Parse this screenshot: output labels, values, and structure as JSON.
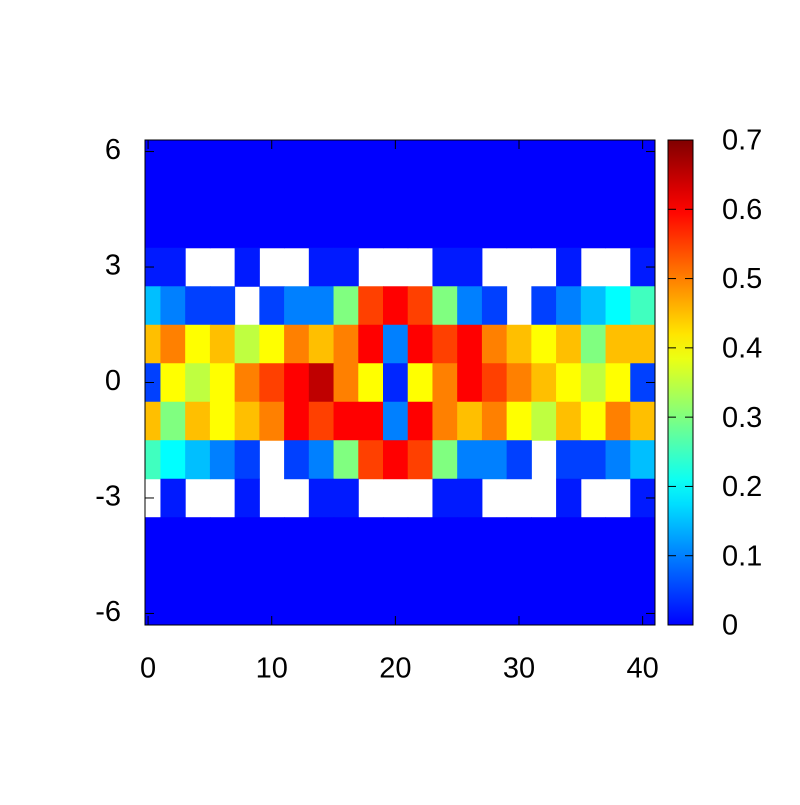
{
  "chart_data": {
    "type": "heatmap",
    "x": [
      0,
      2,
      4,
      6,
      8,
      10,
      12,
      14,
      16,
      18,
      20,
      22,
      24,
      26,
      28,
      30,
      32,
      34,
      36,
      38,
      40
    ],
    "y": [
      6,
      5,
      4,
      3,
      2,
      1,
      0,
      -1,
      -2,
      -3,
      -4,
      -5,
      -6
    ],
    "z": [
      [
        0,
        0,
        0,
        0,
        0,
        0,
        0,
        0,
        0,
        0,
        0,
        0,
        0,
        0,
        0,
        0,
        0,
        0,
        0,
        0,
        0
      ],
      [
        0,
        0,
        0,
        0,
        0,
        0,
        0,
        0,
        0,
        0,
        0,
        0,
        0,
        0,
        0,
        0,
        0,
        0,
        0,
        0,
        0
      ],
      [
        0,
        0,
        0,
        0,
        0,
        0,
        0,
        0,
        0,
        0,
        0,
        0,
        0,
        0,
        0,
        0,
        0,
        0,
        0,
        0,
        0
      ],
      [
        0.02,
        0.02,
        null,
        null,
        0.02,
        null,
        null,
        0.02,
        0.02,
        null,
        null,
        null,
        0.02,
        0.02,
        null,
        null,
        null,
        0.02,
        null,
        null,
        0.02
      ],
      [
        0.15,
        0.1,
        0.05,
        0.05,
        null,
        0.05,
        0.1,
        0.1,
        0.3,
        0.55,
        0.6,
        0.55,
        0.3,
        0.1,
        0.05,
        null,
        0.05,
        0.1,
        0.15,
        0.2,
        0.25
      ],
      [
        0.45,
        0.5,
        0.4,
        0.45,
        0.35,
        0.4,
        0.5,
        0.45,
        0.5,
        0.6,
        0.1,
        0.6,
        0.55,
        0.6,
        0.5,
        0.45,
        0.4,
        0.45,
        0.3,
        0.45,
        0.45
      ],
      [
        0.05,
        0.4,
        0.35,
        0.4,
        0.5,
        0.55,
        0.6,
        0.65,
        0.5,
        0.4,
        0.03,
        0.4,
        0.5,
        0.6,
        0.55,
        0.5,
        0.45,
        0.4,
        0.35,
        0.4,
        0.05
      ],
      [
        0.45,
        0.3,
        0.45,
        0.4,
        0.45,
        0.5,
        0.6,
        0.55,
        0.6,
        0.6,
        0.1,
        0.6,
        0.5,
        0.45,
        0.5,
        0.4,
        0.35,
        0.45,
        0.4,
        0.5,
        0.45
      ],
      [
        0.25,
        0.2,
        0.15,
        0.1,
        0.05,
        null,
        0.05,
        0.1,
        0.3,
        0.55,
        0.6,
        0.55,
        0.3,
        0.1,
        0.1,
        0.05,
        null,
        0.05,
        0.05,
        0.1,
        0.15
      ],
      [
        null,
        0.02,
        null,
        null,
        0.02,
        null,
        null,
        0.02,
        0.02,
        null,
        null,
        null,
        0.02,
        0.02,
        null,
        null,
        null,
        0.02,
        null,
        null,
        0.02
      ],
      [
        0,
        0,
        0,
        0,
        0,
        0,
        0,
        0,
        0,
        0,
        0,
        0,
        0,
        0,
        0,
        0,
        0,
        0,
        0,
        0,
        0
      ],
      [
        0,
        0,
        0,
        0,
        0,
        0,
        0,
        0,
        0,
        0,
        0,
        0,
        0,
        0,
        0,
        0,
        0,
        0,
        0,
        0,
        0
      ],
      [
        0,
        0,
        0,
        0,
        0,
        0,
        0,
        0,
        0,
        0,
        0,
        0,
        0,
        0,
        0,
        0,
        0,
        0,
        0,
        0,
        0
      ]
    ],
    "xlim": [
      -0.25,
      41
    ],
    "ylim": [
      -6.3,
      6.3
    ],
    "xticks": [
      0,
      10,
      20,
      30,
      40
    ],
    "yticks": [
      6,
      3,
      0,
      -3,
      -6
    ],
    "clim": [
      0,
      0.7
    ],
    "cticks": [
      0,
      0.1,
      0.2,
      0.3,
      0.4,
      0.5,
      0.6,
      0.7
    ],
    "colormap": "jet"
  }
}
